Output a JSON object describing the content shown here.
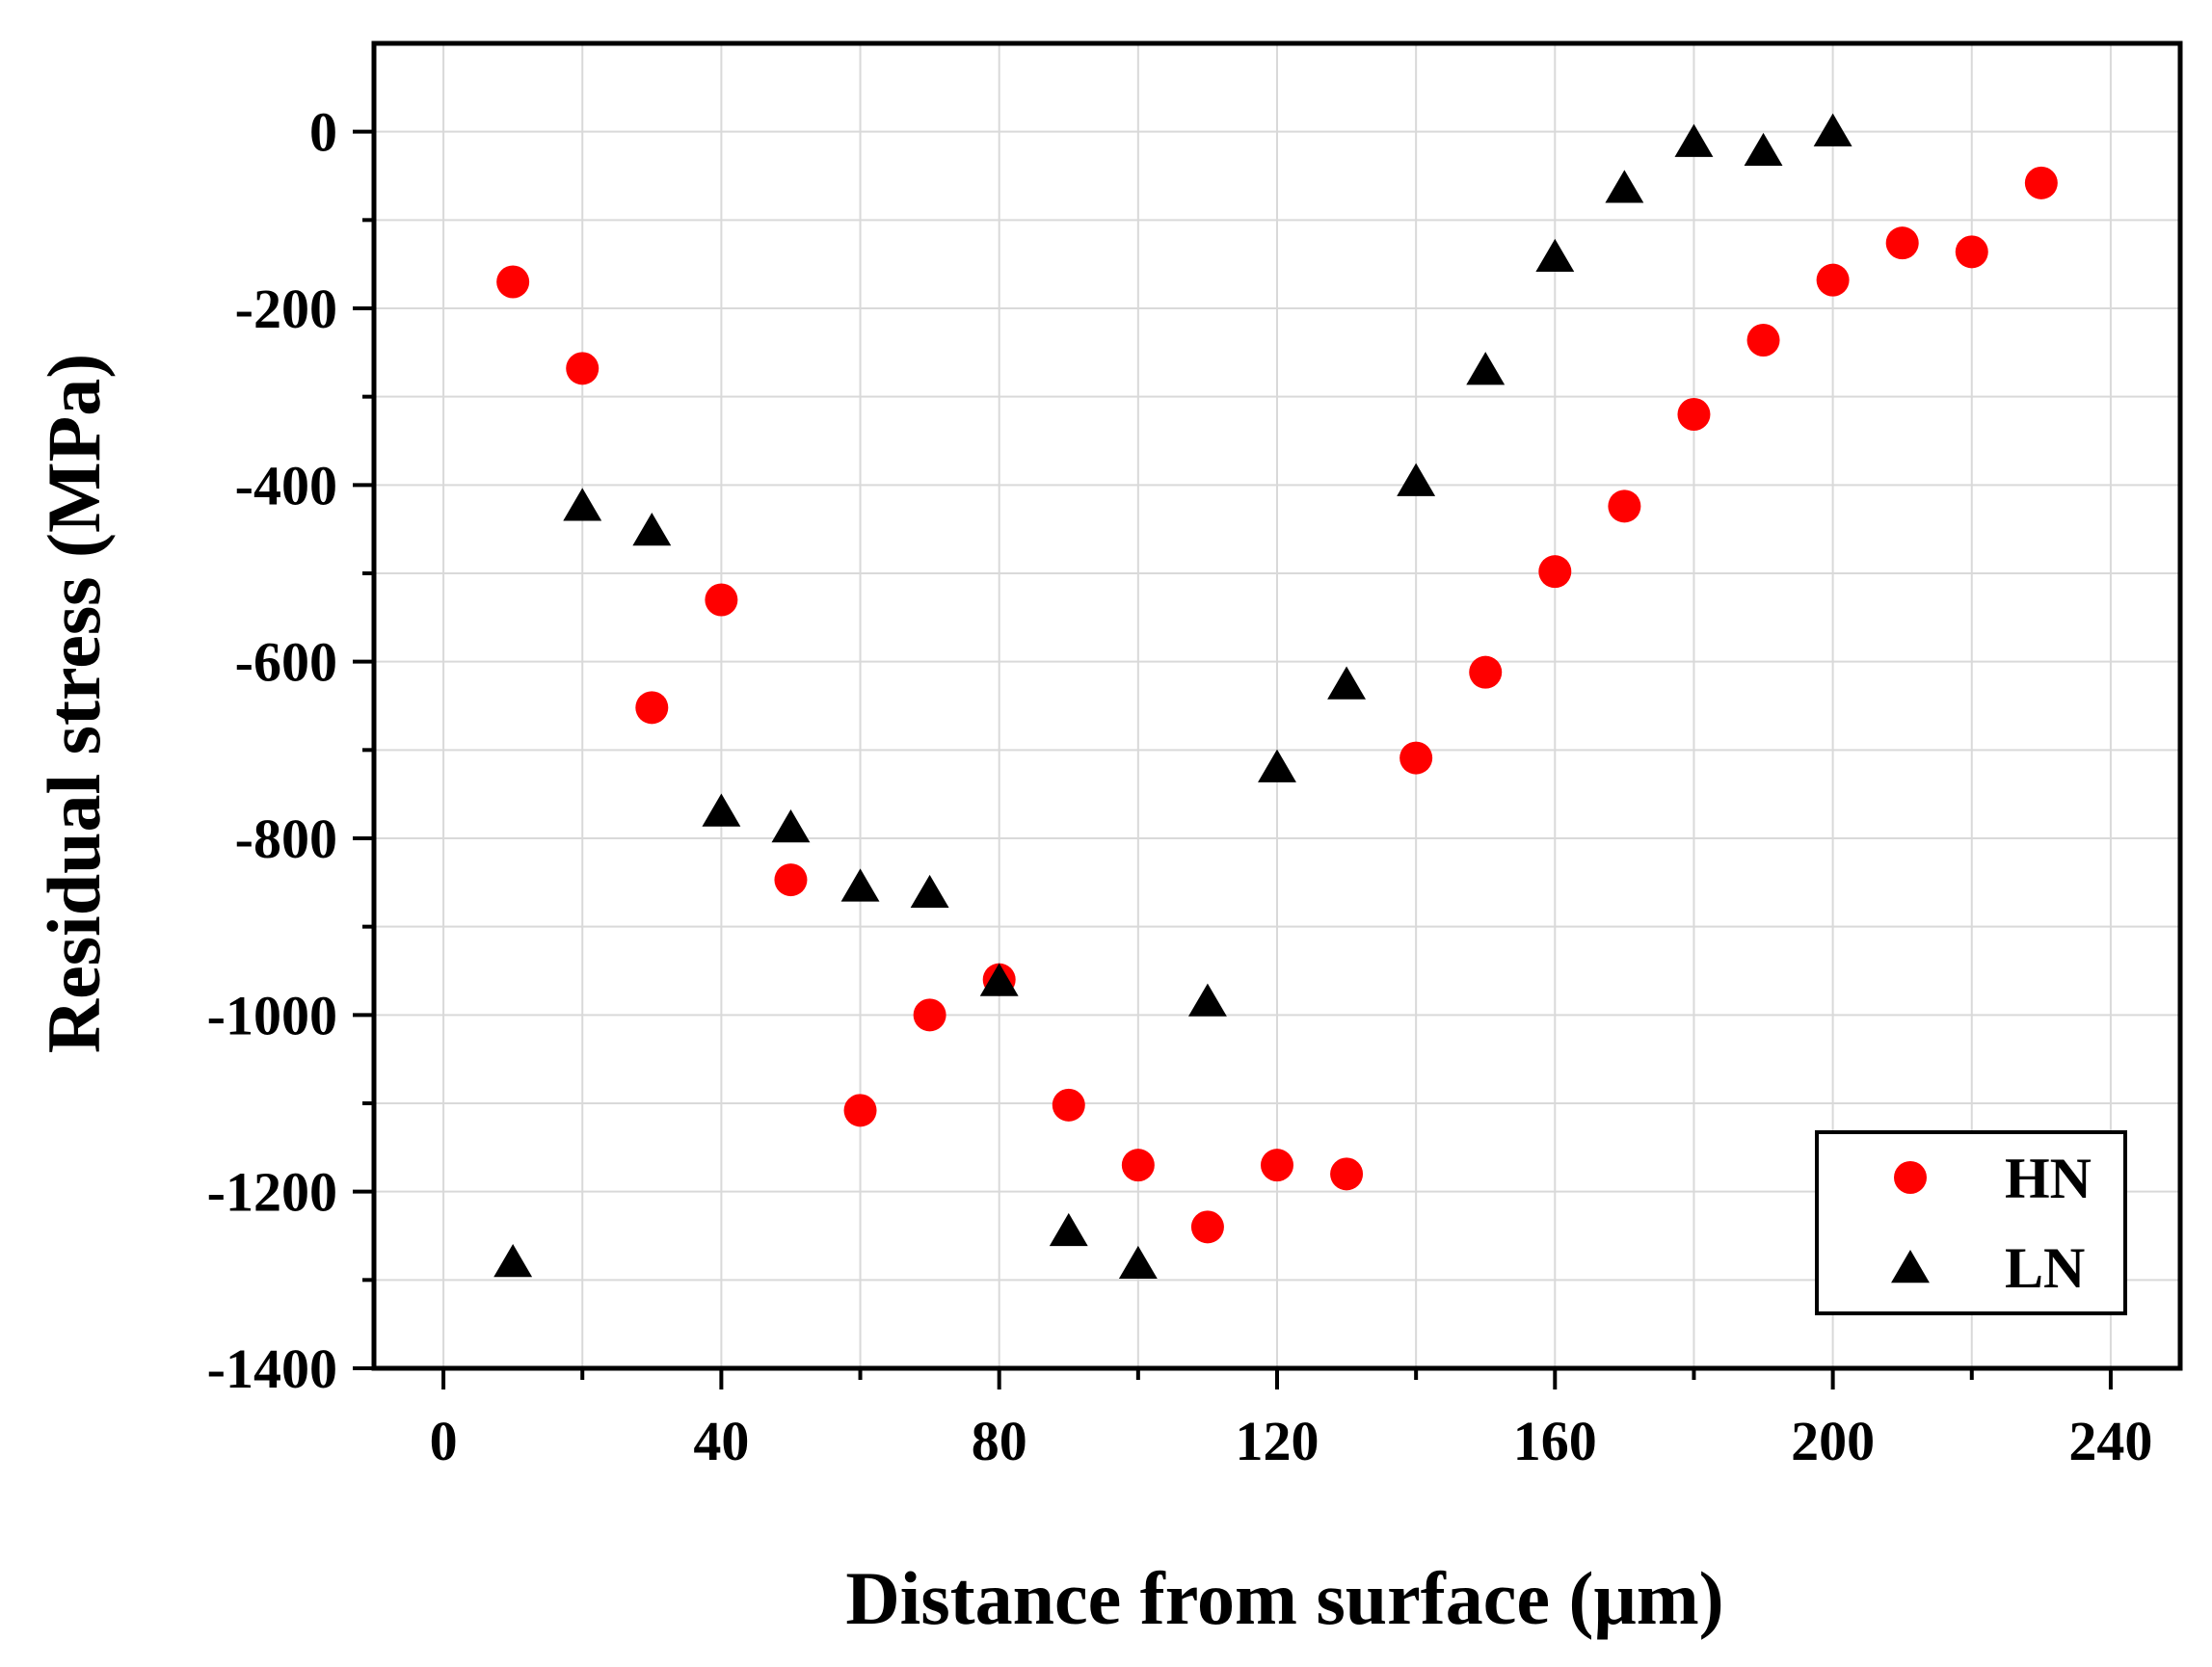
{
  "chart_data": {
    "type": "scatter",
    "xlabel": "Distance from surface (μm)",
    "ylabel": "Residual stress (MPa)",
    "xlim": [
      -10,
      250
    ],
    "ylim": [
      -1400,
      100
    ],
    "xticks": [
      0,
      40,
      80,
      120,
      160,
      200,
      240
    ],
    "yticks": [
      0,
      -200,
      -400,
      -600,
      -800,
      -1000,
      -1200,
      -1400
    ],
    "grid": true,
    "legend_position": "bottom-right",
    "series": [
      {
        "name": "HN",
        "marker": "circle",
        "color": "#ff0000",
        "x": [
          10,
          20,
          30,
          40,
          50,
          60,
          70,
          80,
          90,
          100,
          110,
          120,
          130,
          140,
          150,
          160,
          170,
          180,
          190,
          200,
          210,
          220,
          230
        ],
        "y": [
          -170,
          -268,
          -652,
          -530,
          -847,
          -1108,
          -1000,
          -960,
          -1102,
          -1170,
          -1240,
          -1170,
          -1180,
          -709,
          -612,
          -498,
          -424,
          -320,
          -236,
          -168,
          -126,
          -136,
          -58
        ]
      },
      {
        "name": "LN",
        "marker": "triangle",
        "color": "#000000",
        "x": [
          10,
          20,
          30,
          40,
          50,
          60,
          70,
          80,
          90,
          100,
          110,
          120,
          130,
          140,
          150,
          160,
          170,
          180,
          190,
          200
        ],
        "y": [
          -1280,
          -424,
          -452,
          -770,
          -788,
          -855,
          -862,
          -962,
          -1245,
          -1282,
          -985,
          -720,
          -626,
          -396,
          -270,
          -142,
          -64,
          -12,
          -22,
          0
        ]
      }
    ]
  }
}
